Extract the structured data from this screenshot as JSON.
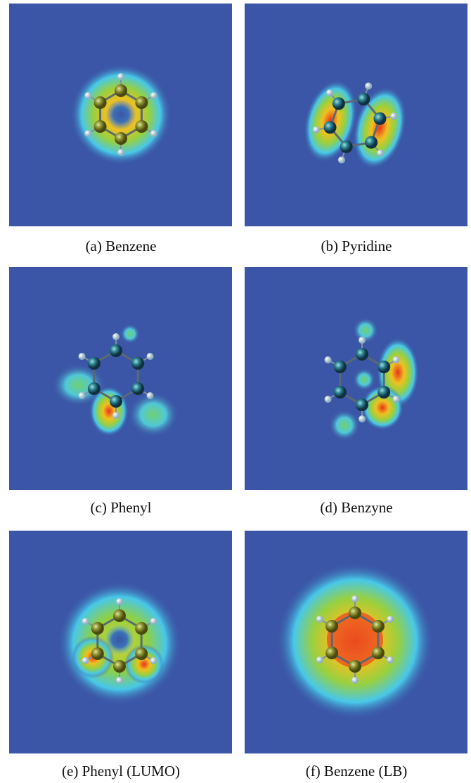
{
  "panels": [
    {
      "caption": "(a) Benzene"
    },
    {
      "caption": "(b) Pyridine"
    },
    {
      "caption": "(c) Phenyl"
    },
    {
      "caption": "(d) Benzyne"
    },
    {
      "caption": "(e) Phenyl (LUMO)"
    },
    {
      "caption": "(f) Benzene (LB)"
    }
  ]
}
